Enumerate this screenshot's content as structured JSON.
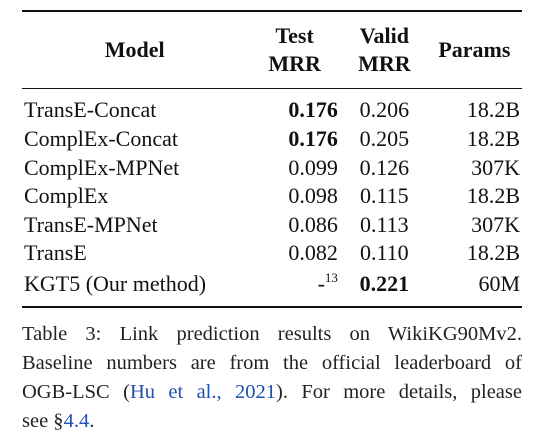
{
  "table": {
    "headers": {
      "model": "Model",
      "test_line1": "Test",
      "test_line2": "MRR",
      "valid_line1": "Valid",
      "valid_line2": "MRR",
      "params": "Params"
    },
    "rows": [
      {
        "model": "TransE-Concat",
        "test": "0.176",
        "valid": "0.206",
        "params": "18.2B"
      },
      {
        "model": "ComplEx-Concat",
        "test": "0.176",
        "valid": "0.205",
        "params": "18.2B"
      },
      {
        "model": "ComplEx-MPNet",
        "test": "0.099",
        "valid": "0.126",
        "params": "307K"
      },
      {
        "model": "ComplEx",
        "test": "0.098",
        "valid": "0.115",
        "params": "18.2B"
      },
      {
        "model": "TransE-MPNet",
        "test": "0.086",
        "valid": "0.113",
        "params": "307K"
      },
      {
        "model": "TransE",
        "test": "0.082",
        "valid": "0.110",
        "params": "18.2B"
      },
      {
        "model": "KGT5 (Our method)",
        "test": "-",
        "test_footnote": "13",
        "valid": "0.221",
        "params": "60M"
      }
    ]
  },
  "caption": {
    "line1": "Table 3:  Link prediction results on WikiKG90Mv2.",
    "line2": "Baseline numbers are from the official leaderboard of",
    "line3_before": "OGB-LSC (",
    "line3_link": "Hu et al., 2021",
    "line3_after": ").  For more details, please",
    "line4_before": "see §",
    "line4_link": "4.4",
    "line4_after": "."
  }
}
